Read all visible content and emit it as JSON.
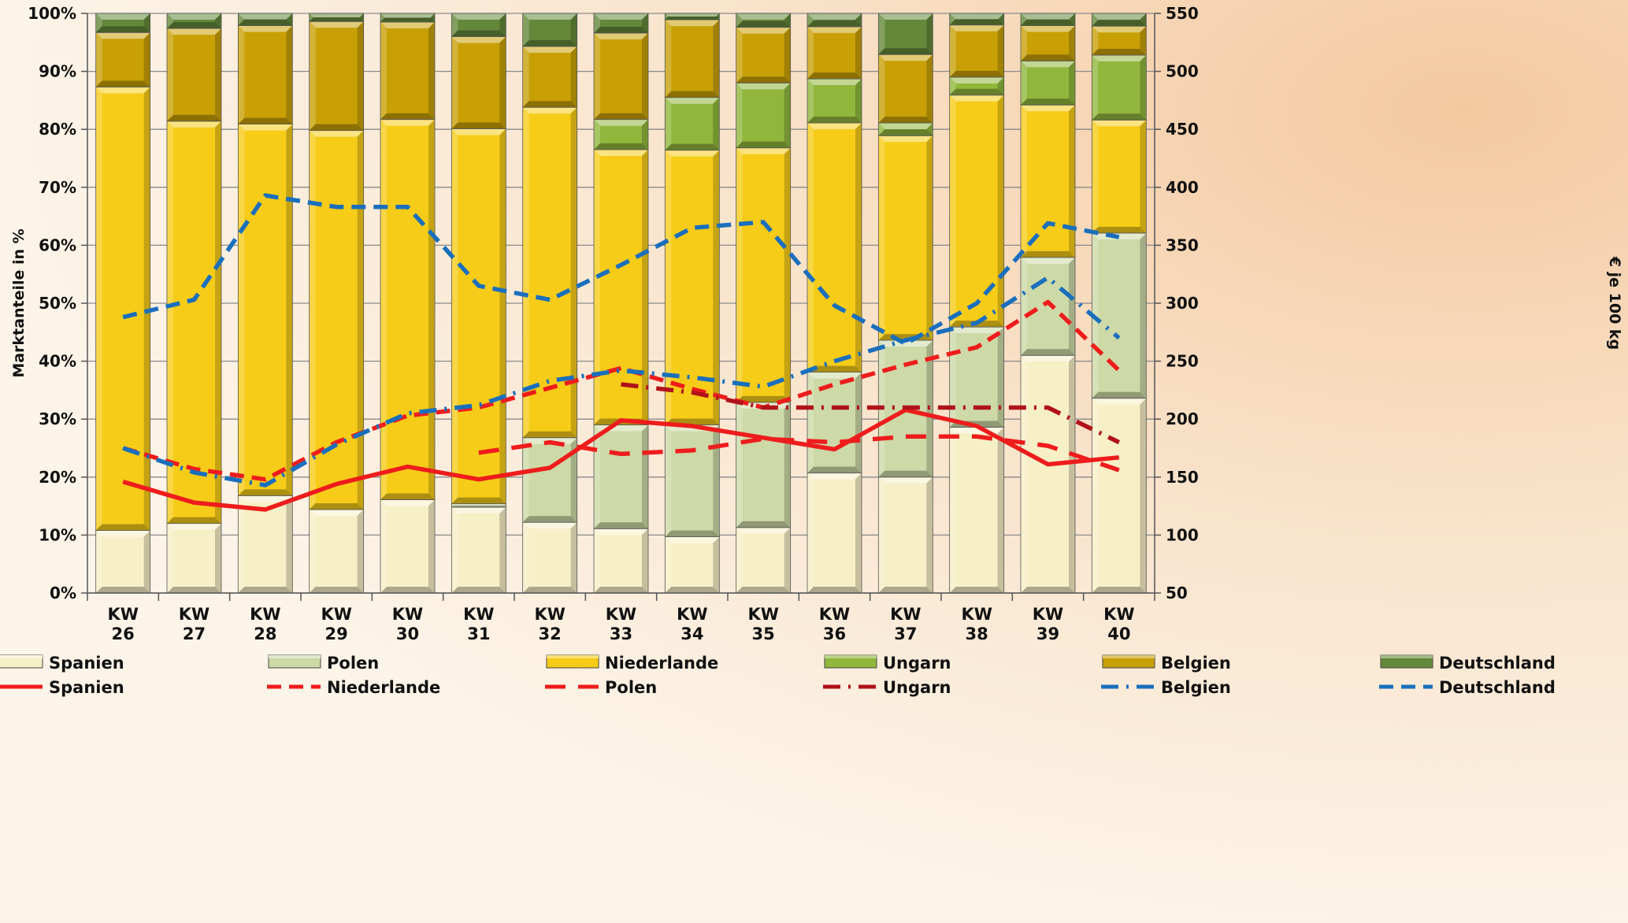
{
  "chart_data": {
    "type": "bar",
    "stacked": true,
    "categories": [
      [
        "KW",
        "26"
      ],
      [
        "KW",
        "27"
      ],
      [
        "KW",
        "28"
      ],
      [
        "KW",
        "29"
      ],
      [
        "KW",
        "30"
      ],
      [
        "KW",
        "31"
      ],
      [
        "KW",
        "32"
      ],
      [
        "KW",
        "33"
      ],
      [
        "KW",
        "34"
      ],
      [
        "KW",
        "35"
      ],
      [
        "KW",
        "36"
      ],
      [
        "KW",
        "37"
      ],
      [
        "KW",
        "38"
      ],
      [
        "KW",
        "39"
      ],
      [
        "KW",
        "40"
      ]
    ],
    "ylabel": "Marktanteile in %",
    "y2label": "€ je 100 kg",
    "ylim": [
      0,
      100
    ],
    "y2lim": [
      50,
      550
    ],
    "yticks": [
      "0%",
      "10%",
      "20%",
      "30%",
      "40%",
      "50%",
      "60%",
      "70%",
      "80%",
      "90%",
      "100%"
    ],
    "y2ticks": [
      "50",
      "100",
      "150",
      "200",
      "250",
      "300",
      "350",
      "400",
      "450",
      "500",
      "550"
    ],
    "legend_placement": "bottom",
    "grid": true,
    "bar_series": [
      {
        "name": "Spanien",
        "color": "#f7efc6",
        "values": [
          10.8,
          12.0,
          16.8,
          14.4,
          16.1,
          14.8,
          12.2,
          11.1,
          9.7,
          11.3,
          20.7,
          20.0,
          28.6,
          41.0,
          33.6
        ]
      },
      {
        "name": "Polen",
        "color": "#cdd9a6",
        "values": [
          0,
          0,
          0,
          0,
          0,
          0.6,
          14.6,
          17.9,
          19.3,
          21.6,
          17.4,
          23.6,
          17.3,
          16.9,
          28.5
        ]
      },
      {
        "name": "Niederlande",
        "color": "#f6cc18",
        "values": [
          76.5,
          69.4,
          64.1,
          65.4,
          65.6,
          64.7,
          57.0,
          47.5,
          47.4,
          43.9,
          43.0,
          35.3,
          40.0,
          26.3,
          19.5
        ]
      },
      {
        "name": "Ungarn",
        "color": "#90b63c",
        "values": [
          0,
          0,
          0,
          0,
          0,
          0,
          0,
          5.2,
          9.1,
          11.2,
          7.6,
          2.2,
          3.1,
          7.6,
          11.2
        ]
      },
      {
        "name": "Belgien",
        "color": "#c8a006",
        "values": [
          9.4,
          16.0,
          17.0,
          18.8,
          16.8,
          15.9,
          10.5,
          14.9,
          13.4,
          9.6,
          9.0,
          11.8,
          9.0,
          6.1,
          5.0
        ]
      },
      {
        "name": "Deutschland",
        "color": "#64883a",
        "values": [
          3.3,
          2.6,
          2.1,
          1.4,
          1.5,
          4.0,
          5.7,
          3.4,
          1.1,
          2.4,
          2.3,
          7.1,
          2.0,
          2.1,
          2.2
        ]
      }
    ],
    "line_series": [
      {
        "name": "Spanien",
        "color": "#ee1c1c",
        "style": "solid",
        "values": [
          146,
          128,
          122,
          144,
          159,
          148,
          158,
          199,
          194,
          184,
          174,
          208,
          194,
          161,
          167
        ]
      },
      {
        "name": "Niederlande",
        "color": "#ee1c1c",
        "style": "dash",
        "values": [
          175,
          157,
          148,
          180,
          203,
          210,
          227,
          244,
          226,
          210,
          230,
          247,
          262,
          301,
          242
        ]
      },
      {
        "name": "Polen",
        "color": "#ee1c1c",
        "style": "longdash",
        "values": [
          null,
          null,
          null,
          null,
          null,
          171,
          180,
          170,
          173,
          183,
          180,
          185,
          185,
          177,
          156
        ]
      },
      {
        "name": "Ungarn",
        "color": "#b0121a",
        "style": "dashdot",
        "values": [
          null,
          null,
          null,
          null,
          null,
          null,
          null,
          230,
          223,
          210,
          210,
          210,
          210,
          210,
          180
        ]
      },
      {
        "name": "Belgien",
        "color": "#1a6fbd",
        "style": "dashdot",
        "values": [
          175,
          154,
          143,
          178,
          205,
          212,
          233,
          242,
          236,
          228,
          250,
          268,
          283,
          322,
          270
        ]
      },
      {
        "name": "Deutschland",
        "color": "#1a6fbd",
        "style": "dash",
        "values": [
          288,
          303,
          393,
          383,
          383,
          315,
          303,
          333,
          365,
          370,
          298,
          265,
          300,
          369,
          357
        ]
      }
    ]
  }
}
